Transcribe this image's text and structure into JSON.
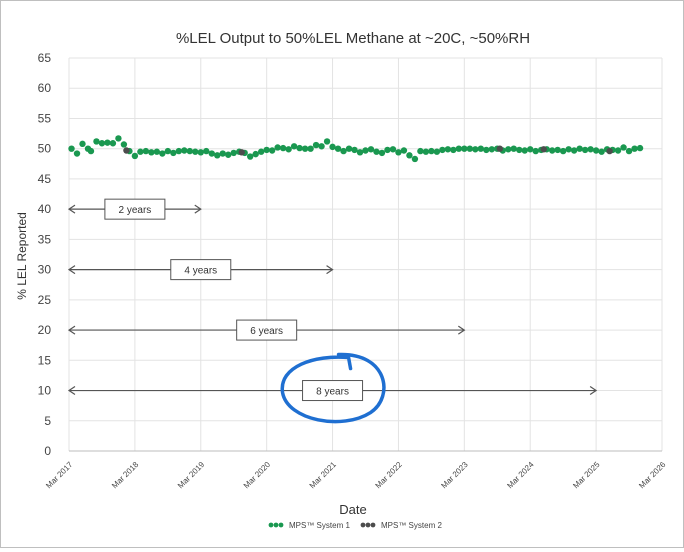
{
  "chart_data": {
    "type": "scatter",
    "title": "%LEL Output to 50%LEL Methane at ~20C, ~50%RH",
    "xlabel": "Date",
    "ylabel": "% LEL Reported",
    "ylim": [
      0,
      65
    ],
    "yticks": [
      0,
      5,
      10,
      15,
      20,
      25,
      30,
      35,
      40,
      45,
      50,
      55,
      60,
      65
    ],
    "xlim": [
      "2017-03",
      "2026-03"
    ],
    "xticks": [
      "Mar 2017",
      "Mar 2018",
      "Mar 2019",
      "Mar 2020",
      "Mar 2021",
      "Mar 2022",
      "Mar 2023",
      "Mar 2024",
      "Mar 2025",
      "Mar 2026"
    ],
    "grid": true,
    "legend": "bottom",
    "colors": {
      "system1": "#1a9850",
      "system2": "#4d4d4d",
      "annotation_circle": "#1f6fd1"
    },
    "series": [
      {
        "name": "MPS™ System 1",
        "points": [
          [
            "2017-03-15",
            50.0
          ],
          [
            "2017-04-15",
            49.2
          ],
          [
            "2017-05-15",
            50.8
          ],
          [
            "2017-06-15",
            50.0
          ],
          [
            "2017-07-01",
            49.6
          ],
          [
            "2017-08-01",
            51.2
          ],
          [
            "2017-09-01",
            50.9
          ],
          [
            "2017-10-01",
            51.0
          ],
          [
            "2017-11-01",
            50.9
          ],
          [
            "2017-12-01",
            51.7
          ],
          [
            "2018-01-01",
            50.7
          ],
          [
            "2018-02-01",
            49.6
          ],
          [
            "2018-03-01",
            48.8
          ],
          [
            "2018-04-01",
            49.5
          ],
          [
            "2018-05-01",
            49.6
          ],
          [
            "2018-06-01",
            49.4
          ],
          [
            "2018-07-01",
            49.5
          ],
          [
            "2018-08-01",
            49.2
          ],
          [
            "2018-09-01",
            49.6
          ],
          [
            "2018-10-01",
            49.3
          ],
          [
            "2018-11-01",
            49.6
          ],
          [
            "2018-12-01",
            49.7
          ],
          [
            "2019-01-01",
            49.6
          ],
          [
            "2019-02-01",
            49.5
          ],
          [
            "2019-03-01",
            49.4
          ],
          [
            "2019-04-01",
            49.6
          ],
          [
            "2019-05-01",
            49.2
          ],
          [
            "2019-06-01",
            48.9
          ],
          [
            "2019-07-01",
            49.2
          ],
          [
            "2019-08-01",
            49.0
          ],
          [
            "2019-09-01",
            49.3
          ],
          [
            "2019-10-01",
            49.5
          ],
          [
            "2019-11-01",
            49.3
          ],
          [
            "2019-12-01",
            48.7
          ],
          [
            "2020-01-01",
            49.1
          ],
          [
            "2020-02-01",
            49.5
          ],
          [
            "2020-03-01",
            49.8
          ],
          [
            "2020-04-01",
            49.7
          ],
          [
            "2020-05-01",
            50.2
          ],
          [
            "2020-06-01",
            50.1
          ],
          [
            "2020-07-01",
            49.9
          ],
          [
            "2020-08-01",
            50.4
          ],
          [
            "2020-09-01",
            50.1
          ],
          [
            "2020-10-01",
            50.0
          ],
          [
            "2020-11-01",
            50.0
          ],
          [
            "2020-12-01",
            50.6
          ],
          [
            "2021-01-01",
            50.4
          ],
          [
            "2021-02-01",
            51.2
          ],
          [
            "2021-03-01",
            50.3
          ],
          [
            "2021-04-01",
            50.0
          ],
          [
            "2021-05-01",
            49.6
          ],
          [
            "2021-06-01",
            50.0
          ],
          [
            "2021-07-01",
            49.8
          ],
          [
            "2021-08-01",
            49.4
          ],
          [
            "2021-09-01",
            49.7
          ],
          [
            "2021-10-01",
            49.9
          ],
          [
            "2021-11-01",
            49.5
          ],
          [
            "2021-12-01",
            49.3
          ],
          [
            "2022-01-01",
            49.8
          ],
          [
            "2022-02-01",
            49.9
          ],
          [
            "2022-03-01",
            49.4
          ],
          [
            "2022-04-01",
            49.7
          ],
          [
            "2022-05-01",
            48.9
          ],
          [
            "2022-06-01",
            48.3
          ],
          [
            "2022-07-01",
            49.6
          ],
          [
            "2022-08-01",
            49.5
          ],
          [
            "2022-09-01",
            49.6
          ],
          [
            "2022-10-01",
            49.5
          ],
          [
            "2022-11-01",
            49.8
          ],
          [
            "2022-12-01",
            49.9
          ],
          [
            "2023-01-01",
            49.8
          ],
          [
            "2023-02-01",
            50.0
          ],
          [
            "2023-03-01",
            50.0
          ],
          [
            "2023-04-01",
            50.0
          ],
          [
            "2023-05-01",
            49.9
          ],
          [
            "2023-06-01",
            50.0
          ],
          [
            "2023-07-01",
            49.8
          ],
          [
            "2023-08-01",
            49.9
          ],
          [
            "2023-09-01",
            50.0
          ],
          [
            "2023-10-01",
            49.7
          ],
          [
            "2023-11-01",
            49.9
          ],
          [
            "2023-12-01",
            50.0
          ],
          [
            "2024-01-01",
            49.8
          ],
          [
            "2024-02-01",
            49.7
          ],
          [
            "2024-03-01",
            49.9
          ],
          [
            "2024-04-01",
            49.6
          ],
          [
            "2024-05-01",
            49.8
          ],
          [
            "2024-06-01",
            49.9
          ],
          [
            "2024-07-01",
            49.7
          ],
          [
            "2024-08-01",
            49.8
          ],
          [
            "2024-09-01",
            49.6
          ],
          [
            "2024-10-01",
            49.9
          ],
          [
            "2024-11-01",
            49.7
          ],
          [
            "2024-12-01",
            50.0
          ],
          [
            "2025-01-01",
            49.8
          ],
          [
            "2025-02-01",
            49.9
          ],
          [
            "2025-03-01",
            49.7
          ],
          [
            "2025-04-01",
            49.5
          ],
          [
            "2025-05-01",
            49.9
          ],
          [
            "2025-06-01",
            49.8
          ],
          [
            "2025-07-01",
            49.7
          ],
          [
            "2025-08-01",
            50.2
          ],
          [
            "2025-09-01",
            49.6
          ],
          [
            "2025-10-01",
            50.0
          ],
          [
            "2025-11-01",
            50.1
          ]
        ]
      },
      {
        "name": "MPS™ System 2",
        "points": [
          [
            "2018-01-15",
            49.7
          ],
          [
            "2019-10-15",
            49.4
          ],
          [
            "2023-09-15",
            50.0
          ],
          [
            "2024-05-15",
            49.9
          ],
          [
            "2025-05-15",
            49.6
          ]
        ]
      }
    ],
    "annotations": [
      {
        "label": "2 years",
        "y": 40,
        "x_start": "2017-03",
        "x_end": "2019-03"
      },
      {
        "label": "4 years",
        "y": 30,
        "x_start": "2017-03",
        "x_end": "2021-03"
      },
      {
        "label": "6 years",
        "y": 20,
        "x_start": "2017-03",
        "x_end": "2023-03"
      },
      {
        "label": "8 years",
        "y": 10,
        "x_start": "2017-03",
        "x_end": "2025-03"
      }
    ]
  }
}
